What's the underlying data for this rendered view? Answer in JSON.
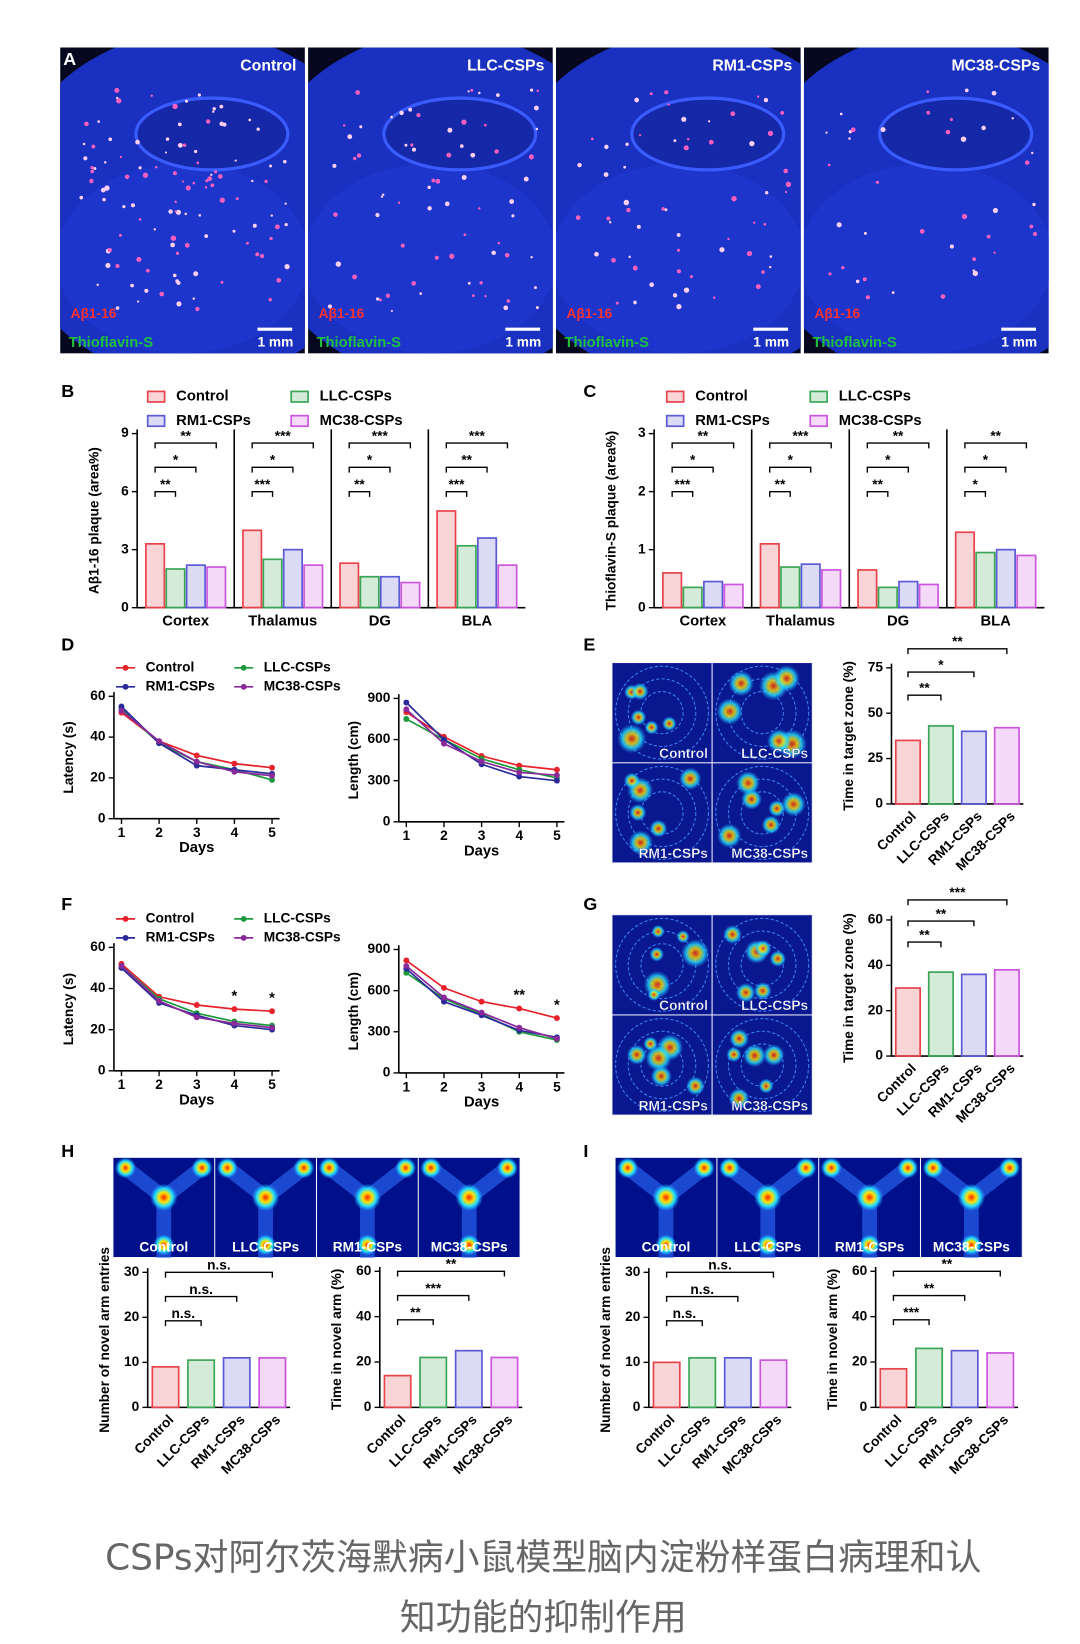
{
  "panel_labels": [
    "A",
    "B",
    "C",
    "D",
    "E",
    "F",
    "G",
    "H",
    "I"
  ],
  "panel_a": {
    "titles": [
      "Control",
      "LLC-CSPs",
      "RM1-CSPs",
      "MC38-CSPs"
    ],
    "stain_1": "Aβ1-16",
    "stain_2": "Thioflavin-S",
    "scale_bar": "1 mm"
  },
  "tiles_e": [
    "Control",
    "LLC-CSPs",
    "RM1-CSPs",
    "MC38-CSPs"
  ],
  "tiles_g": [
    "Control",
    "LLC-CSPs",
    "RM1-CSPs",
    "MC38-CSPs"
  ],
  "tiles_h": [
    "Control",
    "LLC-CSPs",
    "RM1-CSPs",
    "MC38-CSPs"
  ],
  "tiles_i": [
    "Control",
    "LLC-CSPs",
    "RM1-CSPs",
    "MC38-CSPs"
  ],
  "caption": [
    "CSPs对阿尔茨海默病小鼠模型脑内淀粉样蛋白病理和认",
    "知功能的抑制作用"
  ],
  "chart_data": [
    {
      "type": "bar",
      "categories": [
        "Cortex",
        "Thalamus",
        "DG",
        "BLA"
      ],
      "ylabel": "Aβ1-16 plaque (area%)",
      "ylim": [
        0,
        9
      ],
      "yticks": [
        0,
        3,
        6,
        9
      ],
      "series": [
        {
          "name": "Control",
          "color": "#e8424a",
          "values": [
            3.3,
            4.0,
            2.3,
            5.0
          ]
        },
        {
          "name": "LLC-CSPs",
          "color": "#3aa655",
          "values": [
            2.0,
            2.5,
            1.6,
            3.2
          ]
        },
        {
          "name": "RM1-CSPs",
          "color": "#5a5ad6",
          "values": [
            2.2,
            3.0,
            1.6,
            3.6
          ]
        },
        {
          "name": "MC38-CSPs",
          "color": "#cc55dd",
          "values": [
            2.1,
            2.2,
            1.3,
            2.2
          ]
        }
      ],
      "annotations": [
        [
          "**",
          "*",
          "**"
        ],
        [
          "***",
          "*",
          "***"
        ],
        [
          "**",
          "*",
          "***"
        ],
        [
          "***",
          "**",
          "***"
        ]
      ]
    },
    {
      "type": "bar",
      "categories": [
        "Cortex",
        "Thalamus",
        "DG",
        "BLA"
      ],
      "ylabel": "Thioflavin-S plaque (area%)",
      "ylim": [
        0,
        3
      ],
      "yticks": [
        0,
        1,
        2,
        3
      ],
      "series": [
        {
          "name": "Control",
          "color": "#e8424a",
          "values": [
            0.6,
            1.1,
            0.65,
            1.3
          ]
        },
        {
          "name": "LLC-CSPs",
          "color": "#3aa655",
          "values": [
            0.35,
            0.7,
            0.35,
            0.95
          ]
        },
        {
          "name": "RM1-CSPs",
          "color": "#5a5ad6",
          "values": [
            0.45,
            0.75,
            0.45,
            1.0
          ]
        },
        {
          "name": "MC38-CSPs",
          "color": "#cc55dd",
          "values": [
            0.4,
            0.65,
            0.4,
            0.9
          ]
        }
      ],
      "annotations": [
        [
          "***",
          "*",
          "**"
        ],
        [
          "**",
          "*",
          "***"
        ],
        [
          "**",
          "*",
          "**"
        ],
        [
          "*",
          "*",
          "**"
        ]
      ]
    },
    {
      "type": "line",
      "x": [
        1,
        2,
        3,
        4,
        5
      ],
      "xlim": [
        0.8,
        5.2
      ],
      "xticks": [
        1,
        2,
        3,
        4,
        5
      ],
      "xlabel": "Days",
      "ylabel": "Latency (s)",
      "ylim": [
        0,
        60
      ],
      "yticks": [
        0,
        20,
        40,
        60
      ],
      "series": [
        {
          "name": "Control",
          "color": "#e8222a",
          "values": [
            52,
            38,
            31,
            27,
            25
          ]
        },
        {
          "name": "LLC-CSPs",
          "color": "#1a9a3a",
          "values": [
            54,
            37,
            28,
            24,
            19
          ]
        },
        {
          "name": "RM1-CSPs",
          "color": "#2a2a9a",
          "values": [
            55,
            37,
            26,
            24,
            22
          ]
        },
        {
          "name": "MC38-CSPs",
          "color": "#8a2a9a",
          "values": [
            53,
            38,
            28,
            23,
            21
          ]
        }
      ]
    },
    {
      "type": "line",
      "x": [
        1,
        2,
        3,
        4,
        5
      ],
      "xlim": [
        0.8,
        5.2
      ],
      "xticks": [
        1,
        2,
        3,
        4,
        5
      ],
      "xlabel": "Days",
      "ylabel": "Length (cm)",
      "ylim": [
        0,
        900
      ],
      "yticks": [
        0,
        300,
        600,
        900
      ],
      "series": [
        {
          "name": "Control",
          "color": "#e8222a",
          "values": [
            800,
            620,
            480,
            410,
            380
          ]
        },
        {
          "name": "LLC-CSPs",
          "color": "#1a9a3a",
          "values": [
            750,
            600,
            460,
            380,
            320
          ]
        },
        {
          "name": "RM1-CSPs",
          "color": "#2a2a9a",
          "values": [
            870,
            600,
            420,
            330,
            300
          ]
        },
        {
          "name": "MC38-CSPs",
          "color": "#8a2a9a",
          "values": [
            820,
            570,
            440,
            360,
            340
          ]
        }
      ]
    },
    {
      "type": "bar",
      "categories": [
        "Control",
        "LLC-CSPs",
        "RM1-CSPs",
        "MC38-CSPs"
      ],
      "values": [
        35,
        43,
        40,
        42
      ],
      "colors": [
        "#e8424a",
        "#3aa655",
        "#5a5ad6",
        "#cc55dd"
      ],
      "ylabel": "Time in target zone (%)",
      "ylim": [
        0,
        75
      ],
      "yticks": [
        0,
        25,
        50,
        75
      ],
      "annotations": [
        "**",
        "*",
        "**"
      ]
    },
    {
      "type": "line",
      "x": [
        1,
        2,
        3,
        4,
        5
      ],
      "xlim": [
        0.8,
        5.2
      ],
      "xticks": [
        1,
        2,
        3,
        4,
        5
      ],
      "xlabel": "Days",
      "ylabel": "Latency (s)",
      "ylim": [
        0,
        60
      ],
      "yticks": [
        0,
        20,
        40,
        60
      ],
      "series": [
        {
          "name": "Control",
          "color": "#e8222a",
          "values": [
            52,
            36,
            32,
            30,
            29
          ]
        },
        {
          "name": "LLC-CSPs",
          "color": "#1a9a3a",
          "values": [
            51,
            35,
            28,
            24,
            22
          ]
        },
        {
          "name": "RM1-CSPs",
          "color": "#2a2a9a",
          "values": [
            50,
            33,
            27,
            22,
            20
          ]
        },
        {
          "name": "MC38-CSPs",
          "color": "#8a2a9a",
          "values": [
            51,
            34,
            26,
            23,
            21
          ]
        }
      ],
      "annotations": [
        null,
        null,
        null,
        "*",
        "*"
      ]
    },
    {
      "type": "line",
      "x": [
        1,
        2,
        3,
        4,
        5
      ],
      "xlim": [
        0.8,
        5.2
      ],
      "xticks": [
        1,
        2,
        3,
        4,
        5
      ],
      "xlabel": "Days",
      "ylabel": "Length (cm)",
      "ylim": [
        0,
        900
      ],
      "yticks": [
        0,
        300,
        600,
        900
      ],
      "series": [
        {
          "name": "Control",
          "color": "#e8222a",
          "values": [
            820,
            620,
            520,
            470,
            400
          ]
        },
        {
          "name": "LLC-CSPs",
          "color": "#1a9a3a",
          "values": [
            730,
            540,
            430,
            300,
            240
          ]
        },
        {
          "name": "RM1-CSPs",
          "color": "#2a2a9a",
          "values": [
            760,
            520,
            420,
            310,
            260
          ]
        },
        {
          "name": "MC38-CSPs",
          "color": "#8a2a9a",
          "values": [
            780,
            550,
            440,
            330,
            250
          ]
        }
      ],
      "annotations": [
        null,
        null,
        null,
        "**",
        "*"
      ]
    },
    {
      "type": "bar",
      "categories": [
        "Control",
        "LLC-CSPs",
        "RM1-CSPs",
        "MC38-CSPs"
      ],
      "values": [
        30,
        37,
        36,
        38
      ],
      "colors": [
        "#e8424a",
        "#3aa655",
        "#5a5ad6",
        "#cc55dd"
      ],
      "ylabel": "Time in target zone (%)",
      "ylim": [
        0,
        60
      ],
      "yticks": [
        0,
        20,
        40,
        60
      ],
      "annotations": [
        "**",
        "**",
        "***"
      ]
    },
    {
      "type": "bar",
      "categories": [
        "Control",
        "LLC-CSPs",
        "RM1-CSPs",
        "MC38-CSPs"
      ],
      "values": [
        9,
        10.5,
        11,
        11
      ],
      "colors": [
        "#e8424a",
        "#3aa655",
        "#5a5ad6",
        "#cc55dd"
      ],
      "ylabel": "Number of novel arm entries",
      "ylim": [
        0,
        30
      ],
      "yticks": [
        0,
        10,
        20,
        30
      ],
      "annotations": [
        "n.s.",
        "n.s.",
        "n.s."
      ]
    },
    {
      "type": "bar",
      "categories": [
        "Control",
        "LLC-CSPs",
        "RM1-CSPs",
        "MC38-CSPs"
      ],
      "values": [
        14,
        22,
        25,
        22
      ],
      "colors": [
        "#e8424a",
        "#3aa655",
        "#5a5ad6",
        "#cc55dd"
      ],
      "ylabel": "Time in novel arm (%)",
      "ylim": [
        0,
        60
      ],
      "yticks": [
        0,
        20,
        40,
        60
      ],
      "annotations": [
        "**",
        "***",
        "**"
      ]
    },
    {
      "type": "bar",
      "categories": [
        "Control",
        "LLC-CSPs",
        "RM1-CSPs",
        "MC38-CSPs"
      ],
      "values": [
        10,
        11,
        11,
        10.5
      ],
      "colors": [
        "#e8424a",
        "#3aa655",
        "#5a5ad6",
        "#cc55dd"
      ],
      "ylabel": "Number of novel arm entries",
      "ylim": [
        0,
        30
      ],
      "yticks": [
        0,
        10,
        20,
        30
      ],
      "annotations": [
        "n.s.",
        "n.s.",
        "n.s."
      ]
    },
    {
      "type": "bar",
      "categories": [
        "Control",
        "LLC-CSPs",
        "RM1-CSPs",
        "MC38-CSPs"
      ],
      "values": [
        17,
        26,
        25,
        24
      ],
      "colors": [
        "#e8424a",
        "#3aa655",
        "#5a5ad6",
        "#cc55dd"
      ],
      "ylabel": "Time in novel arm (%)",
      "ylim": [
        0,
        60
      ],
      "yticks": [
        0,
        20,
        40,
        60
      ],
      "annotations": [
        "***",
        "**",
        "**"
      ]
    }
  ]
}
